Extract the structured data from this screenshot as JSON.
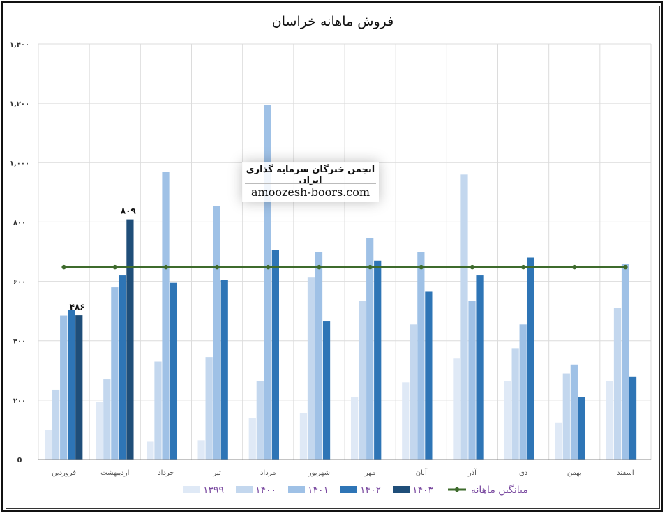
{
  "chart_data": {
    "type": "bar",
    "title": "فروش ماهانه خراسان",
    "categories": [
      "فروردین",
      "اردیبهشت",
      "خرداد",
      "تیر",
      "مرداد",
      "شهریور",
      "مهر",
      "آبان",
      "آذر",
      "دی",
      "بهمن",
      "اسفند"
    ],
    "ylim": [
      0,
      1400
    ],
    "yticks": [
      0,
      200,
      400,
      600,
      800,
      1000,
      1200,
      1400
    ],
    "ytick_labels": [
      "0",
      "۲۰۰",
      "۴۰۰",
      "۶۰۰",
      "۸۰۰",
      "۱,۰۰۰",
      "۱,۲۰۰",
      "۱,۴۰۰"
    ],
    "series": [
      {
        "name": "۱۳۹۹",
        "color": "#dfe9f6",
        "values": [
          100,
          195,
          60,
          65,
          140,
          155,
          210,
          260,
          340,
          265,
          125,
          265
        ]
      },
      {
        "name": "۱۴۰۰",
        "color": "#c3d7ee",
        "values": [
          235,
          270,
          330,
          345,
          265,
          615,
          535,
          455,
          960,
          375,
          290,
          510
        ]
      },
      {
        "name": "۱۴۰۱",
        "color": "#9fc1e6",
        "values": [
          485,
          580,
          970,
          855,
          1195,
          700,
          745,
          700,
          535,
          455,
          320,
          660
        ]
      },
      {
        "name": "۱۴۰۲",
        "color": "#2e75b6",
        "values": [
          505,
          620,
          595,
          605,
          705,
          465,
          670,
          565,
          620,
          680,
          210,
          280
        ]
      },
      {
        "name": "۱۴۰۳",
        "color": "#1f4e79",
        "values": [
          486,
          809,
          null,
          null,
          null,
          null,
          null,
          null,
          null,
          null,
          null,
          null
        ]
      }
    ],
    "average": {
      "name": "میانگین ماهانه",
      "color": "#3e6b2c",
      "value": 648
    },
    "data_labels": [
      {
        "series": "۱۴۰۳",
        "category": "فروردین",
        "text": "۴۸۶"
      },
      {
        "series": "۱۴۰۳",
        "category": "اردیبهشت",
        "text": "۸۰۹"
      }
    ],
    "grid": true,
    "legend_position": "bottom"
  },
  "watermark": {
    "line1": "انجمن خبرگان سرمایه گذاری ایران",
    "line2": "amoozesh-boors.com"
  }
}
